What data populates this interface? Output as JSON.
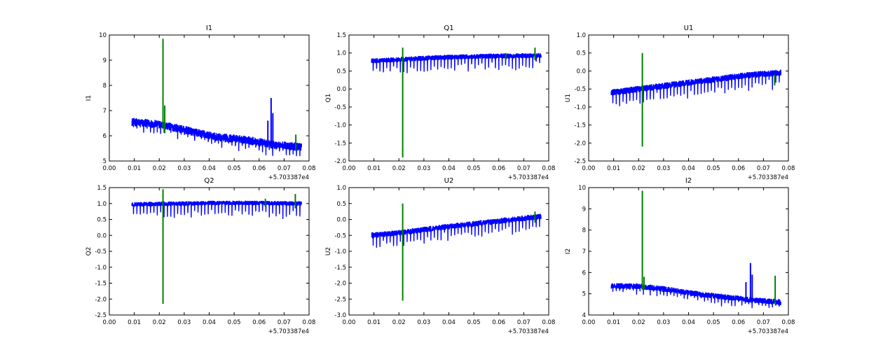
{
  "colors": {
    "series1": "#0000ff",
    "series2": "#008000",
    "axes": "#000000",
    "background": "#ffffff"
  },
  "chart_data": [
    {
      "type": "line",
      "title": "I1",
      "xlabel": "",
      "ylabel": "I1",
      "xlim": [
        0.0,
        0.08
      ],
      "ylim": [
        5,
        10
      ],
      "x_offset_label": "+5.703387e4",
      "xticks": [
        "0.00",
        "0.01",
        "0.02",
        "0.03",
        "0.04",
        "0.05",
        "0.06",
        "0.07",
        "0.08"
      ],
      "yticks": [
        "5",
        "6",
        "7",
        "8",
        "9",
        "10"
      ],
      "series": [
        {
          "name": "blue",
          "color": "#0000ff",
          "x_range": [
            0.009,
            0.077
          ],
          "trend": [
            6.55,
            6.45,
            6.2,
            5.95,
            5.85,
            5.65,
            5.55
          ],
          "noise": 0.15,
          "dip": 0.25,
          "spikes": [
            {
              "x": 0.0635,
              "top": 6.6,
              "bottom": 5.6
            },
            {
              "x": 0.0648,
              "top": 7.5,
              "bottom": 5.6
            },
            {
              "x": 0.0655,
              "top": 6.9,
              "bottom": 5.6
            }
          ]
        },
        {
          "name": "green",
          "color": "#008000",
          "spikes": [
            {
              "x": 0.0215,
              "top": 9.85,
              "bottom": 6.3
            },
            {
              "x": 0.0222,
              "top": 7.2,
              "bottom": 6.1
            },
            {
              "x": 0.0747,
              "top": 6.05,
              "bottom": 5.4
            }
          ]
        }
      ]
    },
    {
      "type": "line",
      "title": "Q1",
      "xlabel": "",
      "ylabel": "Q1",
      "xlim": [
        0.0,
        0.08
      ],
      "ylim": [
        -2.0,
        1.5
      ],
      "x_offset_label": "+5.703387e4",
      "xticks": [
        "0.00",
        "0.01",
        "0.02",
        "0.03",
        "0.04",
        "0.05",
        "0.06",
        "0.07",
        "0.08"
      ],
      "yticks": [
        "-2.0",
        "-1.5",
        "-1.0",
        "-0.5",
        "0.0",
        "0.5",
        "1.0",
        "1.5"
      ],
      "series": [
        {
          "name": "blue",
          "color": "#0000ff",
          "x_range": [
            0.009,
            0.077
          ],
          "trend": [
            0.78,
            0.82,
            0.86,
            0.89,
            0.91,
            0.92,
            0.93
          ],
          "noise": 0.06,
          "dip": 0.28,
          "spikes": []
        },
        {
          "name": "green",
          "color": "#008000",
          "spikes": [
            {
              "x": 0.0215,
              "top": 1.15,
              "bottom": -1.9
            },
            {
              "x": 0.0628,
              "top": 1.0,
              "bottom": 0.8
            },
            {
              "x": 0.0745,
              "top": 1.15,
              "bottom": 0.8
            }
          ]
        }
      ]
    },
    {
      "type": "line",
      "title": "U1",
      "xlabel": "",
      "ylabel": "U1",
      "xlim": [
        0.0,
        0.08
      ],
      "ylim": [
        -2.5,
        1.0
      ],
      "x_offset_label": "+5.703387e4",
      "xticks": [
        "0.00",
        "0.01",
        "0.02",
        "0.03",
        "0.04",
        "0.05",
        "0.06",
        "0.07",
        "0.08"
      ],
      "yticks": [
        "-2.5",
        "-2.0",
        "-1.5",
        "-1.0",
        "-0.5",
        "0.0",
        "0.5",
        "1.0"
      ],
      "series": [
        {
          "name": "blue",
          "color": "#0000ff",
          "x_range": [
            0.009,
            0.077
          ],
          "trend": [
            -0.6,
            -0.5,
            -0.4,
            -0.3,
            -0.2,
            -0.1,
            -0.05
          ],
          "noise": 0.08,
          "dip": 0.3,
          "spikes": []
        },
        {
          "name": "green",
          "color": "#008000",
          "spikes": [
            {
              "x": 0.0215,
              "top": 0.5,
              "bottom": -2.1
            },
            {
              "x": 0.0745,
              "top": -0.1,
              "bottom": -0.4
            }
          ]
        }
      ]
    },
    {
      "type": "line",
      "title": "Q2",
      "xlabel": "",
      "ylabel": "Q2",
      "xlim": [
        0.0,
        0.08
      ],
      "ylim": [
        -2.5,
        1.5
      ],
      "x_offset_label": "+5.703387e4",
      "xticks": [
        "0.00",
        "0.01",
        "0.02",
        "0.03",
        "0.04",
        "0.05",
        "0.06",
        "0.07",
        "0.08"
      ],
      "yticks": [
        "-2.5",
        "-2.0",
        "-1.5",
        "-1.0",
        "-0.5",
        "0.0",
        "0.5",
        "1.0",
        "1.5"
      ],
      "series": [
        {
          "name": "blue",
          "color": "#0000ff",
          "x_range": [
            0.009,
            0.077
          ],
          "trend": [
            0.97,
            0.99,
            1.0,
            1.02,
            1.02,
            1.01,
            1.0
          ],
          "noise": 0.06,
          "dip": 0.33,
          "spikes": []
        },
        {
          "name": "green",
          "color": "#008000",
          "spikes": [
            {
              "x": 0.0215,
              "top": 1.45,
              "bottom": -2.15
            },
            {
              "x": 0.0625,
              "top": 1.15,
              "bottom": 0.9
            },
            {
              "x": 0.0745,
              "top": 1.3,
              "bottom": 0.85
            }
          ]
        }
      ]
    },
    {
      "type": "line",
      "title": "U2",
      "xlabel": "",
      "ylabel": "U2",
      "xlim": [
        0.0,
        0.08
      ],
      "ylim": [
        -3.0,
        1.0
      ],
      "x_offset_label": "+5.703387e4",
      "xticks": [
        "0.00",
        "0.01",
        "0.02",
        "0.03",
        "0.04",
        "0.05",
        "0.06",
        "0.07",
        "0.08"
      ],
      "yticks": [
        "-3.0",
        "-2.5",
        "-2.0",
        "-1.5",
        "-1.0",
        "-0.5",
        "0.0",
        "0.5",
        "1.0"
      ],
      "series": [
        {
          "name": "blue",
          "color": "#0000ff",
          "x_range": [
            0.009,
            0.077
          ],
          "trend": [
            -0.5,
            -0.42,
            -0.3,
            -0.2,
            -0.1,
            0.0,
            0.1
          ],
          "noise": 0.08,
          "dip": 0.32,
          "spikes": []
        },
        {
          "name": "green",
          "color": "#008000",
          "spikes": [
            {
              "x": 0.0215,
              "top": 0.5,
              "bottom": -2.55
            },
            {
              "x": 0.0745,
              "top": 0.25,
              "bottom": -0.1
            }
          ]
        }
      ]
    },
    {
      "type": "line",
      "title": "I2",
      "xlabel": "",
      "ylabel": "I2",
      "xlim": [
        0.0,
        0.08
      ],
      "ylim": [
        4,
        10
      ],
      "x_offset_label": "+5.703387e4",
      "xticks": [
        "0.00",
        "0.01",
        "0.02",
        "0.03",
        "0.04",
        "0.05",
        "0.06",
        "0.07",
        "0.08"
      ],
      "yticks": [
        "4",
        "5",
        "6",
        "7",
        "8",
        "9",
        "10"
      ],
      "series": [
        {
          "name": "blue",
          "color": "#0000ff",
          "x_range": [
            0.009,
            0.077
          ],
          "trend": [
            5.38,
            5.35,
            5.2,
            5.0,
            4.85,
            4.7,
            4.6
          ],
          "noise": 0.12,
          "dip": 0.25,
          "spikes": [
            {
              "x": 0.063,
              "top": 5.55,
              "bottom": 4.7
            },
            {
              "x": 0.0648,
              "top": 6.45,
              "bottom": 4.7
            },
            {
              "x": 0.0655,
              "top": 5.9,
              "bottom": 4.7
            }
          ]
        },
        {
          "name": "green",
          "color": "#008000",
          "spikes": [
            {
              "x": 0.0215,
              "top": 9.85,
              "bottom": 5.2
            },
            {
              "x": 0.0222,
              "top": 5.8,
              "bottom": 5.2
            },
            {
              "x": 0.0747,
              "top": 5.85,
              "bottom": 4.5
            }
          ]
        }
      ]
    }
  ]
}
